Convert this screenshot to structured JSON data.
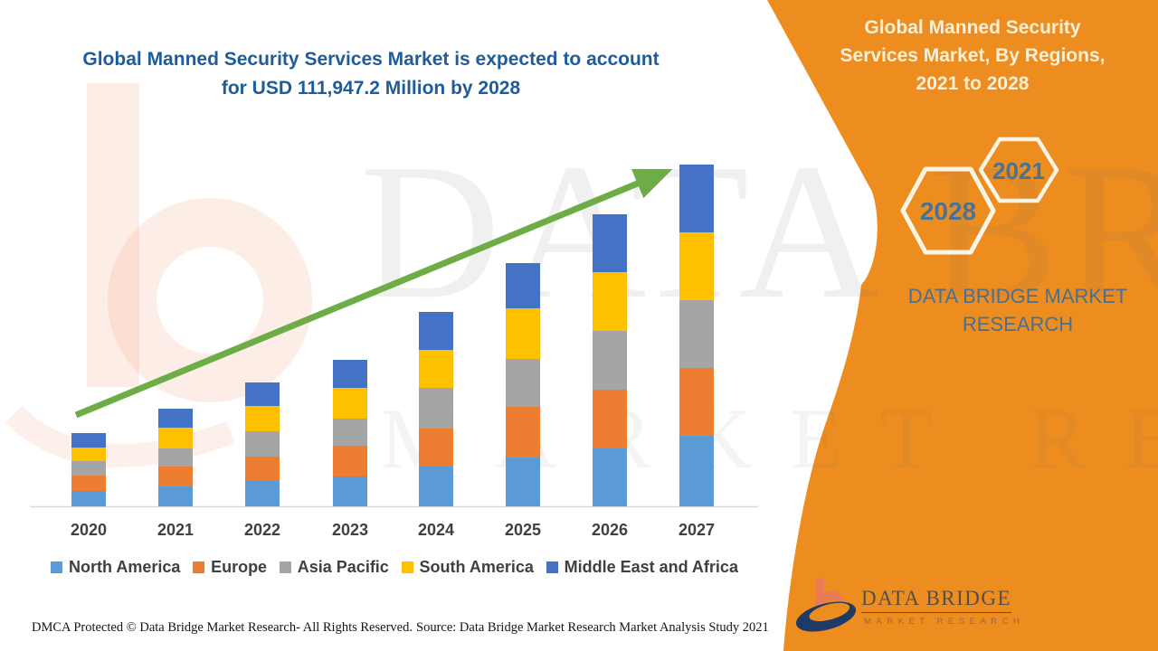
{
  "main_title": {
    "line1": "Global Manned Security Services Market is expected to account",
    "line2": "for USD 111,947.2 Million by 2028",
    "color": "#1F5C99"
  },
  "right_panel": {
    "bg_color": "#EE8D1F",
    "heading_lines": [
      "Global Manned Security",
      "Services Market, By Regions,",
      "2021 to 2028"
    ],
    "hexagons": [
      {
        "label": "2028"
      },
      {
        "label": "2021"
      }
    ],
    "brand_line1": "DATA BRIDGE MARKET",
    "brand_line2": "RESEARCH",
    "logo": {
      "name": "DATA BRIDGE",
      "tagline": "MARKET RESEARCH"
    }
  },
  "watermark": {
    "big_text": "DATA BRIDGE",
    "small_text": "MARKET RESEARCH"
  },
  "footer": {
    "dmca": "DMCA Protected © Data Bridge Market Research- All Rights Reserved.",
    "source": "Source: Data Bridge Market Research Market Analysis Study 2021"
  },
  "chart_data": {
    "type": "bar",
    "stacked": true,
    "title": "Global Manned Security Services Market, By Regions, 2021 to 2028",
    "categories": [
      "2020",
      "2021",
      "2022",
      "2023",
      "2024",
      "2025",
      "2026",
      "2027"
    ],
    "series": [
      {
        "name": "North America",
        "color": "#5B9BD5",
        "values": [
          17,
          22,
          28,
          33,
          44,
          54,
          64,
          78
        ]
      },
      {
        "name": "Europe",
        "color": "#ED7D31",
        "values": [
          17,
          22,
          27,
          34,
          42,
          56,
          65,
          75
        ]
      },
      {
        "name": "Asia Pacific",
        "color": "#A5A5A5",
        "values": [
          16,
          20,
          28,
          30,
          45,
          53,
          65,
          75
        ]
      },
      {
        "name": "South America",
        "color": "#FFC000",
        "values": [
          15,
          23,
          28,
          34,
          42,
          56,
          65,
          75
        ]
      },
      {
        "name": "Middle East and Africa",
        "color": "#4472C4",
        "values": [
          16,
          21,
          26,
          31,
          42,
          50,
          64,
          75
        ]
      }
    ],
    "totals": [
      81,
      108,
      137,
      162,
      215,
      269,
      323,
      378
    ],
    "xlabel": "",
    "ylabel": "",
    "value_axis_visible": false,
    "units": "relative height units (no value axis shown in figure)",
    "grid": false,
    "legend_position": "bottom",
    "trend_arrow": {
      "color": "#6EAD46",
      "from_category": "2020",
      "to_category": "2027",
      "direction": "up-right"
    },
    "axis_line_color": "#D9D9D9",
    "tick_label_color": "#3F4040"
  }
}
